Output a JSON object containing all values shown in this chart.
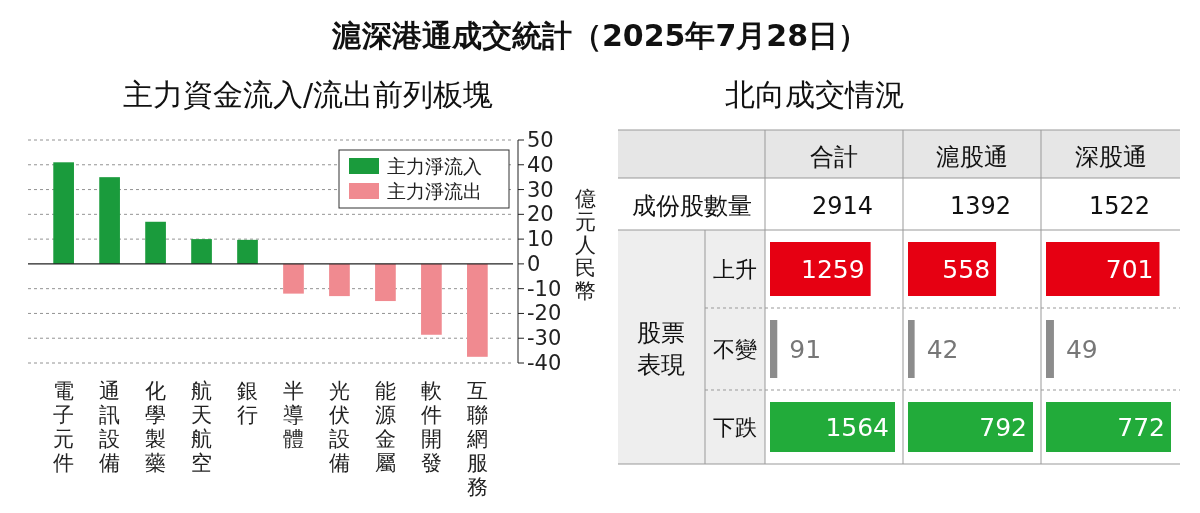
{
  "chart_data": [
    {
      "type": "bar",
      "title": "滬深港通成交統計（2025年7月28日）",
      "subtitle": "主力資金流入/流出前列板塊",
      "categories": [
        "電子元件",
        "通訊設備",
        "化學製藥",
        "航天航空",
        "銀行",
        "半導體",
        "光伏設備",
        "能源金屬",
        "軟件開發",
        "互聯網服務"
      ],
      "stacked": true,
      "ylabel": "億元人民幣",
      "ylim": [
        -40,
        50
      ],
      "yticks": [
        -40,
        -30,
        -20,
        -10,
        0,
        10,
        20,
        30,
        40,
        50
      ],
      "grid": "y",
      "legend": "top right",
      "series": [
        {
          "name": "主力淨流入",
          "color": "#1a9b3c",
          "values": [
            41,
            35,
            17,
            10,
            9.7,
            null,
            null,
            null,
            null,
            null
          ]
        },
        {
          "name": "主力淨流出",
          "color": "#f08a90",
          "values": [
            null,
            null,
            null,
            null,
            null,
            -12,
            -13,
            -15,
            -28.6,
            -37.5
          ]
        }
      ]
    },
    {
      "type": "bar",
      "orientation": "horizontal",
      "title": "合計",
      "categories": [
        "上升",
        "不變",
        "下跌"
      ],
      "values": [
        1259,
        91,
        1564
      ],
      "colors": [
        "#e60012",
        "#8c8c8c",
        "#22ab3a"
      ],
      "data_labels": true,
      "annotations": [
        "北向成交情況",
        "成份股數量",
        "2914",
        "股票表現"
      ]
    },
    {
      "type": "bar",
      "orientation": "horizontal",
      "title": "滬股通",
      "values": [
        558,
        42,
        792
      ],
      "colors": [
        "#e60012",
        "#8c8c8c",
        "#22ab3a"
      ],
      "data_labels": true,
      "annotations": [
        "1392"
      ]
    },
    {
      "type": "bar",
      "orientation": "horizontal",
      "title": "深股通",
      "values": [
        701,
        49,
        772
      ],
      "colors": [
        "#e60012",
        "#8c8c8c",
        "#22ab3a"
      ],
      "data_labels": true,
      "annotations": [
        "1522"
      ]
    }
  ]
}
